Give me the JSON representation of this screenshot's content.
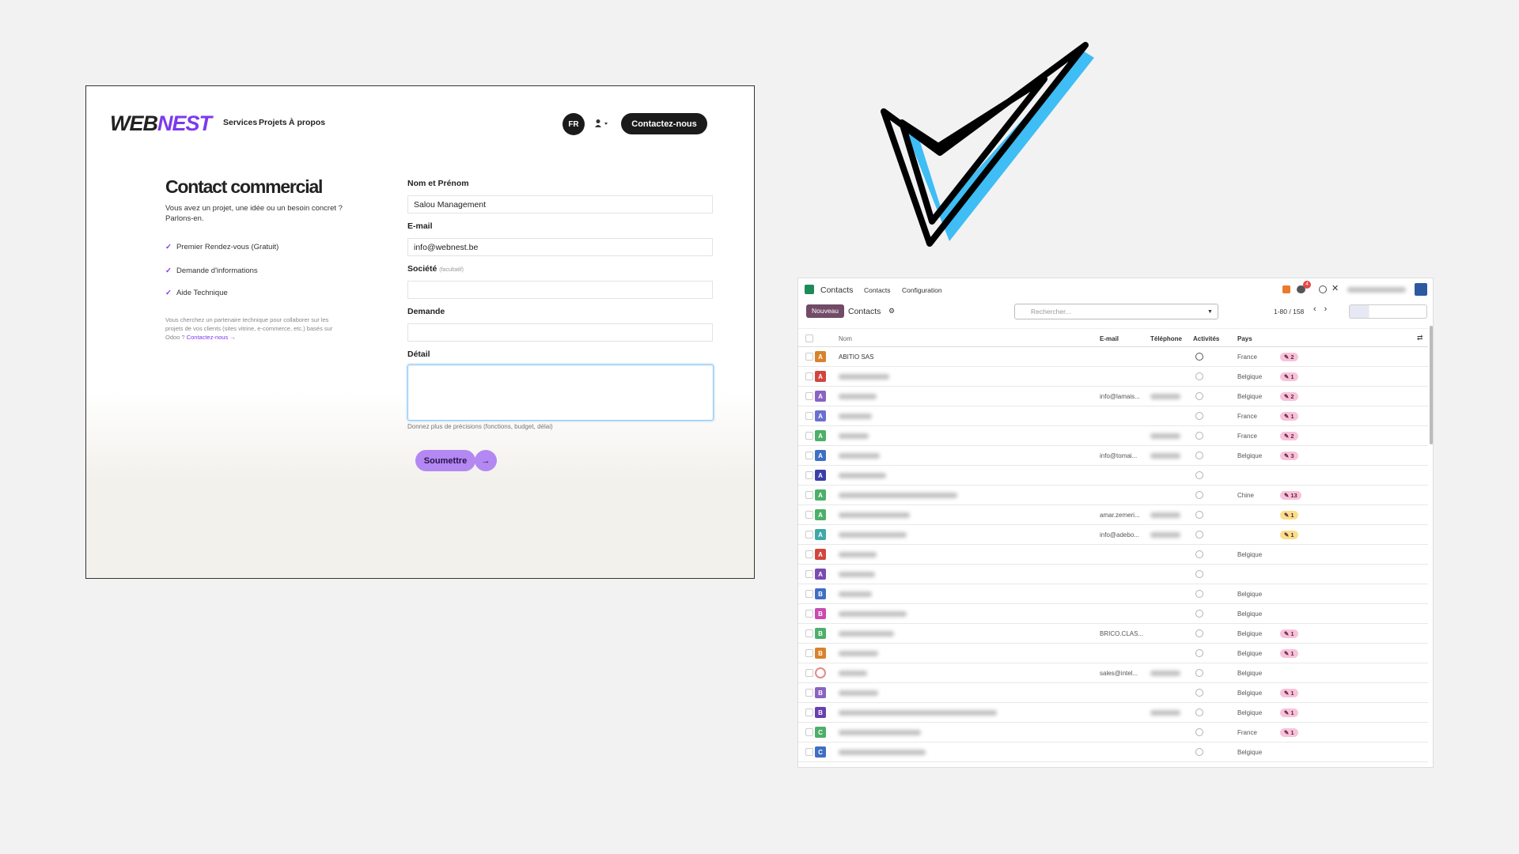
{
  "webnest": {
    "logo_left": "WEB",
    "logo_right": "NEST",
    "nav": [
      "Services",
      "Projets",
      "À propos"
    ],
    "lang": "FR",
    "cta": "Contactez-nous",
    "title": "Contact commercial",
    "intro": [
      "Vous avez un projet, une idée ou un besoin concret ?",
      "Parlons-en."
    ],
    "checklist": [
      "Premier Rendez-vous (Gratuit)",
      "Demande d'informations",
      "Aide Technique"
    ],
    "note": [
      "Vous cherchez un partenaire technique pour collaborer sur les",
      "projets de vos clients (sites vitrine, e-commerce, etc.) basés sur",
      "Odoo ?"
    ],
    "note_link": "Contactez-nous",
    "fields": [
      {
        "label": "Nom et Prénom",
        "value": "Salou Management"
      },
      {
        "label": "E-mail",
        "value": "info@webnest.be"
      },
      {
        "label": "Société",
        "hint": "(facultatif)",
        "value": null
      },
      {
        "label": "Demande",
        "value": null
      },
      {
        "label": "Détail",
        "value": null
      }
    ],
    "detail_help": "Donnez plus de précisions (fonctions, budget, délai)",
    "submit": "Soumettre"
  },
  "odoo": {
    "app": "Contacts",
    "menu": [
      "Contacts",
      "Configuration"
    ],
    "notif_count": "4",
    "new_button": "Nouveau",
    "breadcrumb": "Contacts",
    "search_placeholder": "Rechercher...",
    "pager": "1-80 / 158",
    "columns": [
      "Nom",
      "E-mail",
      "Téléphone",
      "Activités",
      "Pays"
    ],
    "rows": [
      {
        "avatar": "A",
        "avatar_color": "#d9822b",
        "name": "ABITIO SAS",
        "email": null,
        "country": "France",
        "badge": "2",
        "badge_color": "#f6c3da"
      },
      {
        "avatar": "A",
        "avatar_color": "#d0463e",
        "name": null,
        "email": null,
        "country": "Belgique",
        "badge": "1",
        "badge_color": "#f6c3da"
      },
      {
        "avatar": "A",
        "avatar_color": "#8a63c2",
        "name": null,
        "email": "info@lamais...",
        "country": "Belgique",
        "badge": "2",
        "badge_color": "#f6c3da"
      },
      {
        "avatar": "A",
        "avatar_color": "#6a6fd0",
        "name": null,
        "email": null,
        "country": "France",
        "badge": "1",
        "badge_color": "#f6c3da"
      },
      {
        "avatar": "A",
        "avatar_color": "#4caf6a",
        "name": null,
        "email": null,
        "country": "France",
        "badge": "2",
        "badge_color": "#f6c3da"
      },
      {
        "avatar": "A",
        "avatar_color": "#3f6fc4",
        "name": null,
        "email": "info@tomai...",
        "country": "Belgique",
        "badge": "3",
        "badge_color": "#f6c3da"
      },
      {
        "avatar": "A",
        "avatar_color": "#3c3fa8",
        "name": null,
        "email": null,
        "country": null,
        "badge": null,
        "badge_color": null
      },
      {
        "avatar": "A",
        "avatar_color": "#4caf6a",
        "name": null,
        "email": null,
        "country": "Chine",
        "badge": "13",
        "badge_color": "#f6c3da"
      },
      {
        "avatar": "A",
        "avatar_color": "#4caf6a",
        "name": null,
        "email": "amar.zemeri...",
        "country": null,
        "badge": "1",
        "badge_color": "#f8e08a"
      },
      {
        "avatar": "A",
        "avatar_color": "#3fa8a8",
        "name": null,
        "email": "info@adebo...",
        "country": null,
        "badge": "1",
        "badge_color": "#f8e08a"
      },
      {
        "avatar": "A",
        "avatar_color": "#d0463e",
        "name": null,
        "email": null,
        "country": "Belgique",
        "badge": null,
        "badge_color": null
      },
      {
        "avatar": "A",
        "avatar_color": "#7a4bb0",
        "name": null,
        "email": null,
        "country": null,
        "badge": null,
        "badge_color": null
      },
      {
        "avatar": "B",
        "avatar_color": "#3f6fc4",
        "name": null,
        "email": null,
        "country": "Belgique",
        "badge": null,
        "badge_color": null
      },
      {
        "avatar": "B",
        "avatar_color": "#c94bb0",
        "name": null,
        "email": null,
        "country": "Belgique",
        "badge": null,
        "badge_color": null
      },
      {
        "avatar": "B",
        "avatar_color": "#4caf6a",
        "name": null,
        "email": "BRICO.CLAS...",
        "country": "Belgique",
        "badge": "1",
        "badge_color": "#f6c3da"
      },
      {
        "avatar": "B",
        "avatar_color": "#d9822b",
        "name": null,
        "email": null,
        "country": "Belgique",
        "badge": "1",
        "badge_color": "#f6c3da"
      },
      {
        "avatar": null,
        "avatar_color": "#e28a8a",
        "name": null,
        "email": "sales@intel...",
        "country": "Belgique",
        "badge": null,
        "badge_color": null
      },
      {
        "avatar": "B",
        "avatar_color": "#8a63c2",
        "name": null,
        "email": null,
        "country": "Belgique",
        "badge": "1",
        "badge_color": "#f6c3da"
      },
      {
        "avatar": "B",
        "avatar_color": "#6a3fb0",
        "name": null,
        "email": null,
        "country": "Belgique",
        "badge": "1",
        "badge_color": "#f6c3da"
      },
      {
        "avatar": "C",
        "avatar_color": "#4caf6a",
        "name": null,
        "email": null,
        "country": "France",
        "badge": "1",
        "badge_color": "#f6c3da"
      },
      {
        "avatar": "C",
        "avatar_color": "#3f6fc4",
        "name": null,
        "email": null,
        "country": "Belgique",
        "badge": null,
        "badge_color": null
      }
    ]
  }
}
